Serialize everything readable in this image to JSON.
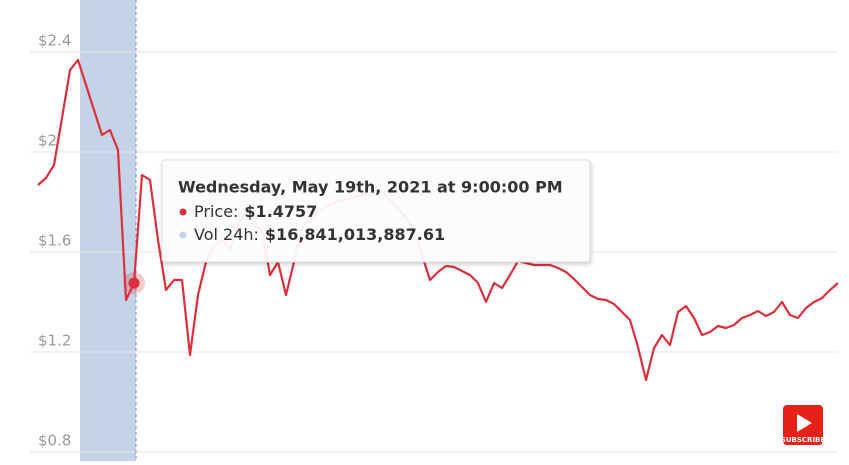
{
  "chart_data": {
    "type": "line",
    "series": [
      {
        "name": "Price",
        "color": "#dc2f3c",
        "values": [
          1.868,
          1.896,
          1.948,
          2.136,
          2.328,
          2.368,
          2.268,
          2.168,
          2.068,
          2.088,
          2.008,
          1.408,
          1.4757,
          1.908,
          1.888,
          1.648,
          1.448,
          1.488,
          1.488,
          1.188,
          1.428,
          1.56,
          1.628,
          1.648,
          1.608,
          1.708,
          1.756,
          1.708,
          1.688,
          1.508,
          1.56,
          1.428,
          1.56,
          1.696,
          1.728,
          1.76,
          1.78,
          1.796,
          1.808,
          1.816,
          1.824,
          1.832,
          1.84,
          1.84,
          1.808,
          1.776,
          1.736,
          1.688,
          1.588,
          1.488,
          1.52,
          1.544,
          1.54,
          1.524,
          1.508,
          1.476,
          1.4,
          1.476,
          1.456,
          1.508,
          1.564,
          1.556,
          1.548,
          1.548,
          1.548,
          1.536,
          1.52,
          1.492,
          1.46,
          1.428,
          1.412,
          1.408,
          1.392,
          1.36,
          1.328,
          1.22,
          1.088,
          1.216,
          1.268,
          1.228,
          1.36,
          1.384,
          1.336,
          1.268,
          1.28,
          1.304,
          1.296,
          1.308,
          1.336,
          1.348,
          1.364,
          1.344,
          1.36,
          1.4,
          1.348,
          1.336,
          1.376,
          1.4,
          1.416,
          1.448,
          1.476
        ]
      }
    ],
    "ylim": [
      0.764,
      2.608
    ],
    "yticks": [
      {
        "value": 0.8,
        "label": "$0.8"
      },
      {
        "value": 1.2,
        "label": "$1.2"
      },
      {
        "value": 1.6,
        "label": "$1.6"
      },
      {
        "value": 2,
        "label": "$2"
      },
      {
        "value": 2.4,
        "label": "$2.4"
      }
    ],
    "grid": true,
    "tooltip": {
      "title": "Wednesday, May 19th, 2021 at 9:00:00 PM",
      "rows": [
        {
          "label": "Price:",
          "value": "$1.4757",
          "color": "#dc2f3c"
        },
        {
          "label": "Vol 24h:",
          "value": "$16,841,013,887.61",
          "color": "#c5d3e8"
        }
      ]
    }
  },
  "badge": "SUBSCRIBE"
}
